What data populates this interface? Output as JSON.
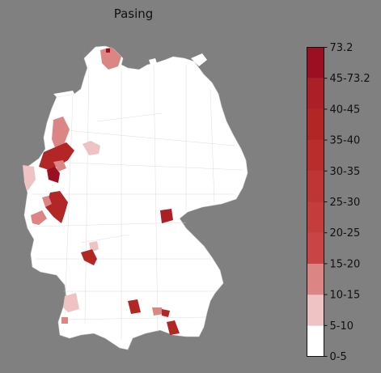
{
  "title": "Pasing",
  "colors": {
    "background": "#808080",
    "land": "#ffffff",
    "border": "#d0d0d0"
  },
  "legend": {
    "ticks": [
      "0-5",
      "5-10",
      "10-15",
      "15-20",
      "20-25",
      "25-30",
      "30-35",
      "35-40",
      "40-45",
      "45-73.2",
      "73.2"
    ],
    "bins": [
      {
        "label": "0-5",
        "color": "#ffffff"
      },
      {
        "label": "5-10",
        "color": "#efc3c3"
      },
      {
        "label": "10-15",
        "color": "#dc8585"
      },
      {
        "label": "15-20",
        "color": "#c94444"
      },
      {
        "label": "20-25",
        "color": "#c43c3c"
      },
      {
        "label": "25-30",
        "color": "#bf3434"
      },
      {
        "label": "30-35",
        "color": "#b92d2d"
      },
      {
        "label": "35-40",
        "color": "#b32626"
      },
      {
        "label": "40-45",
        "color": "#ad1f26"
      },
      {
        "label": "45-73.2",
        "color": "#9c0f22"
      }
    ]
  },
  "map_regions": [
    {
      "name": "north-schleswig",
      "bin": "10-15"
    },
    {
      "name": "north-schleswig-core",
      "bin": "45-73.2"
    },
    {
      "name": "lower-saxony-north-west",
      "bin": "10-15"
    },
    {
      "name": "lower-saxony-central",
      "bin": "5-10"
    },
    {
      "name": "muensterland",
      "bin": "35-40"
    },
    {
      "name": "ruhr-core",
      "bin": "45-73.2"
    },
    {
      "name": "lower-rhine-west",
      "bin": "5-10"
    },
    {
      "name": "rhineland-cologne",
      "bin": "35-40"
    },
    {
      "name": "eifel",
      "bin": "10-15"
    },
    {
      "name": "upper-franconia-east",
      "bin": "40-45"
    },
    {
      "name": "rhine-neckar-north",
      "bin": "5-10"
    },
    {
      "name": "rhine-neckar",
      "bin": "35-40"
    },
    {
      "name": "upper-rhine-south",
      "bin": "5-10"
    },
    {
      "name": "upper-rhine-far-south",
      "bin": "10-15"
    },
    {
      "name": "swabia-ulm",
      "bin": "35-40"
    },
    {
      "name": "munich-west",
      "bin": "10-15"
    },
    {
      "name": "munich-east",
      "bin": "35-40"
    },
    {
      "name": "upper-bavaria-south",
      "bin": "35-40"
    }
  ]
}
